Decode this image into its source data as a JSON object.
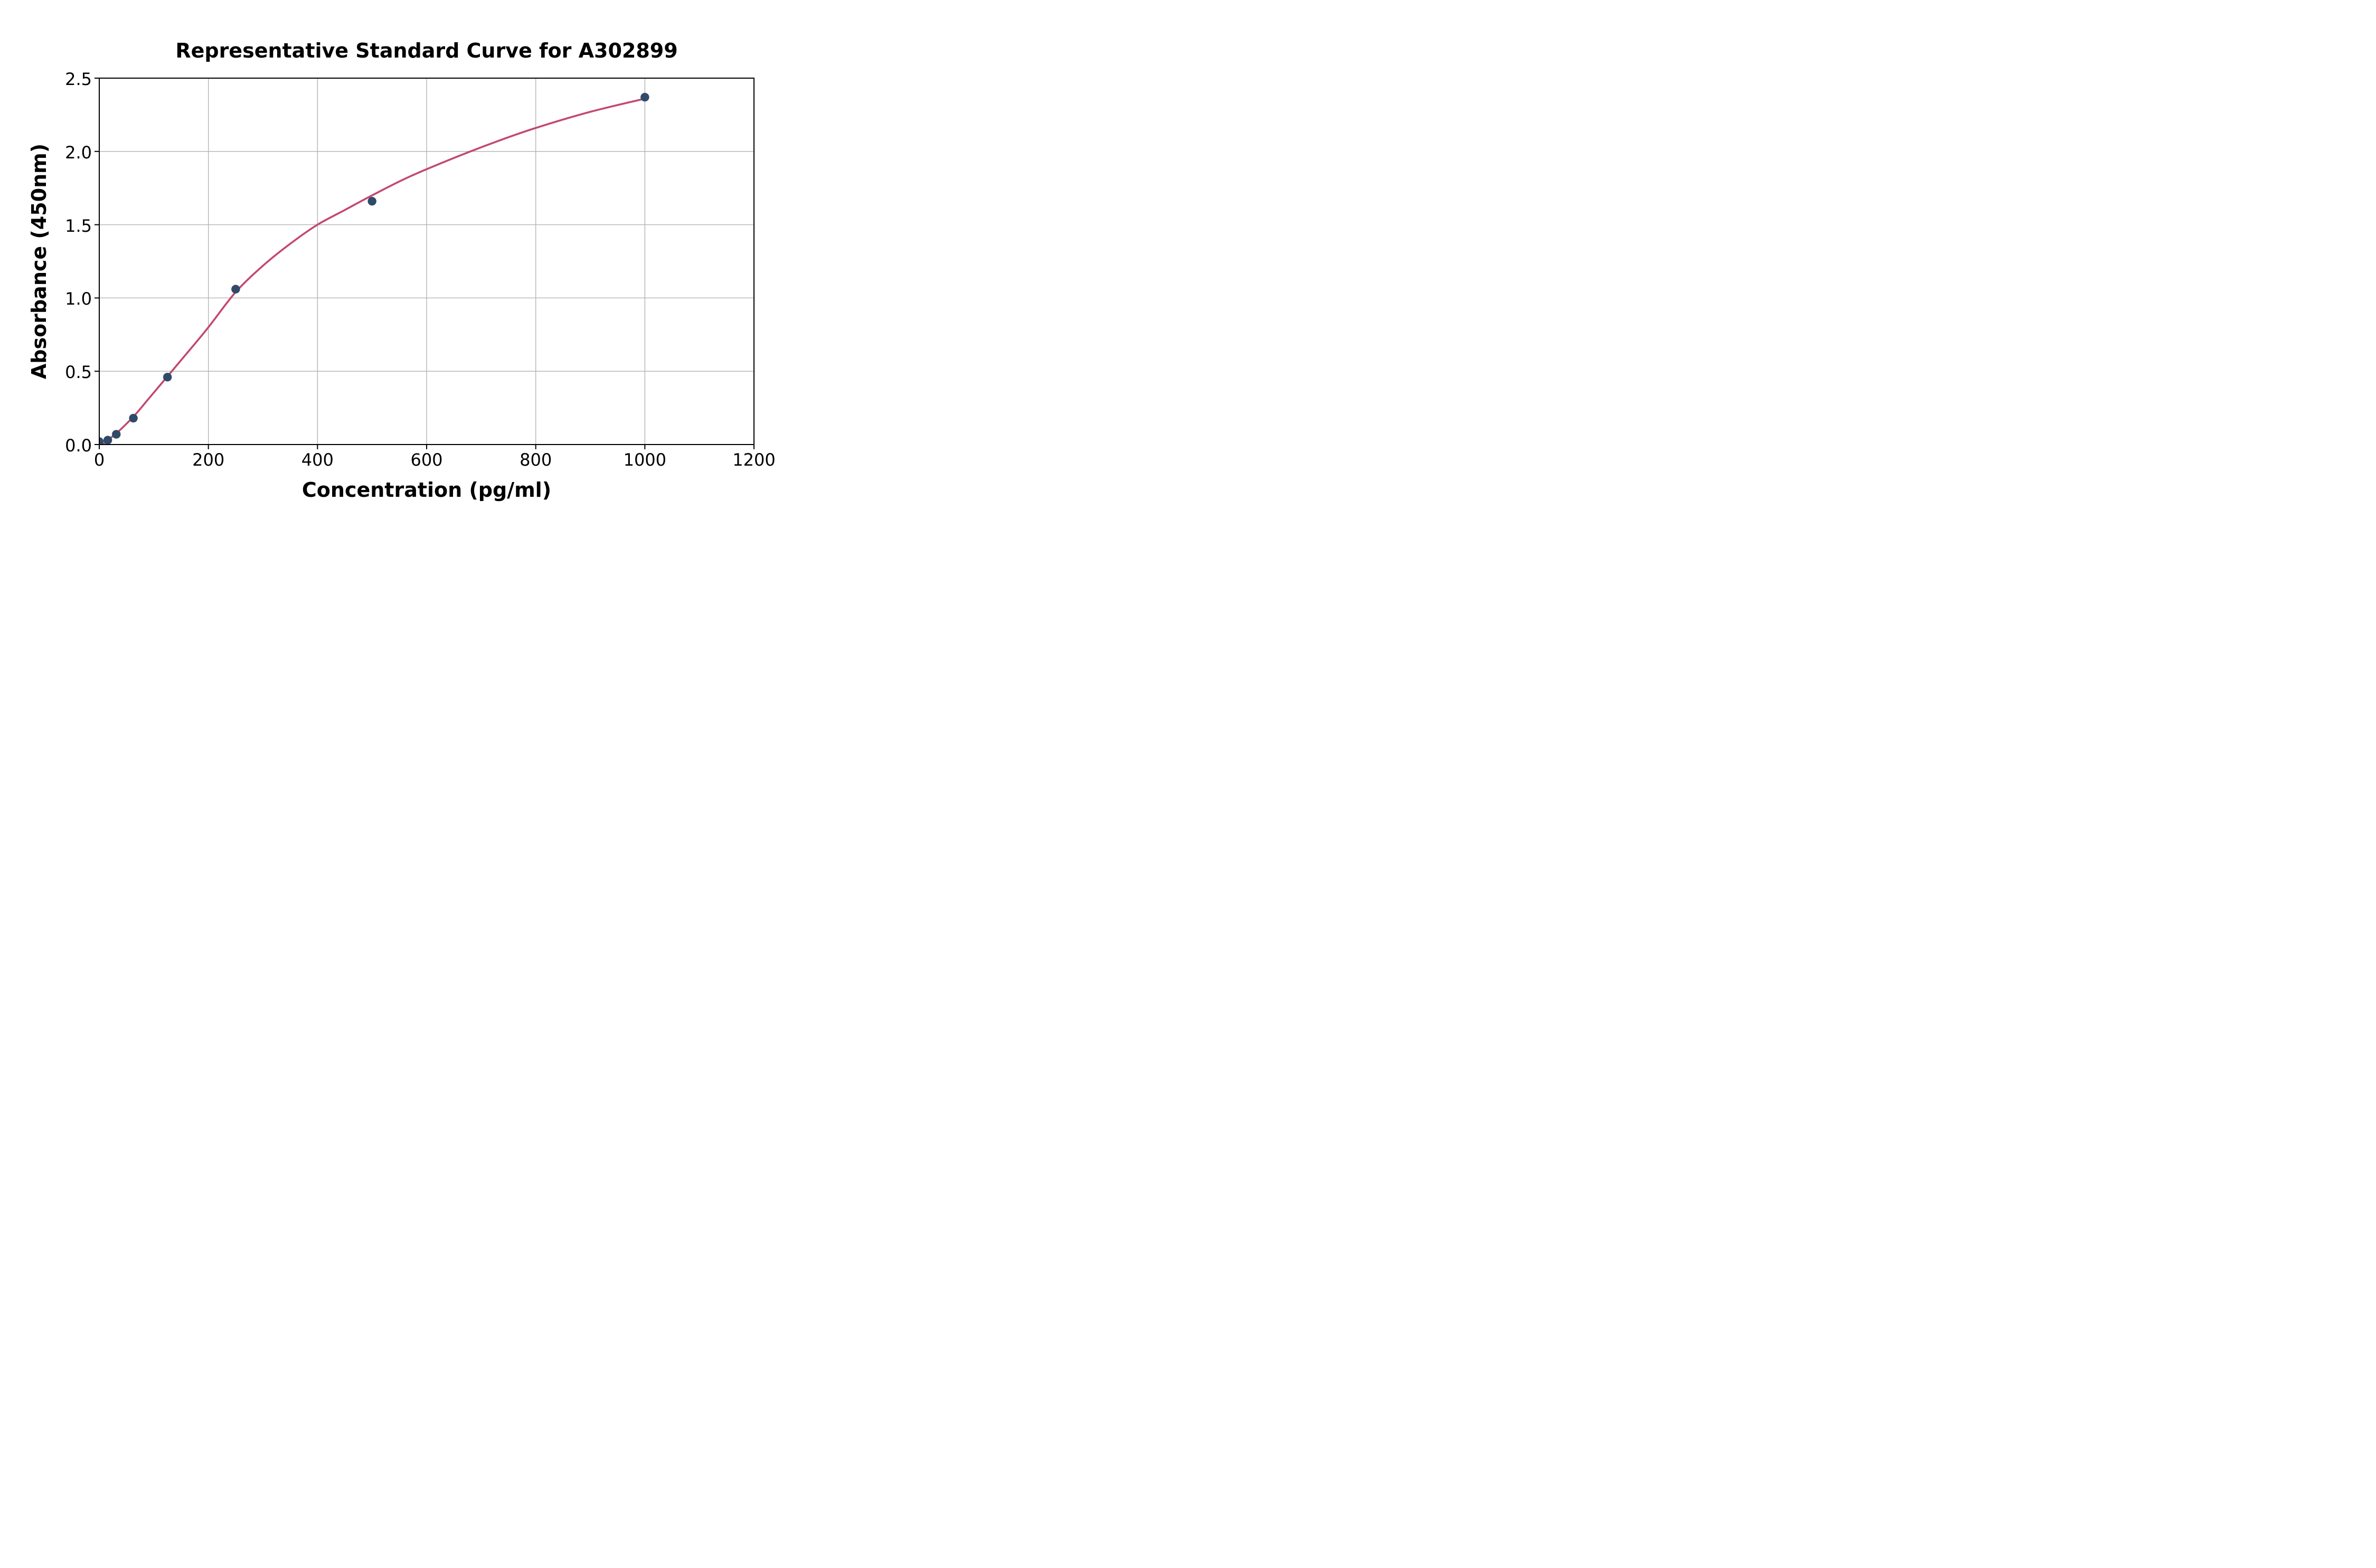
{
  "chart_data": {
    "type": "scatter",
    "title": "Representative Standard Curve for A302899",
    "xlabel": "Concentration (pg/ml)",
    "ylabel": "Absorbance (450nm)",
    "xlim": [
      0,
      1200
    ],
    "ylim": [
      0,
      2.5
    ],
    "x_ticks": [
      0,
      200,
      400,
      600,
      800,
      1000,
      1200
    ],
    "x_tick_labels": [
      "0",
      "200",
      "400",
      "600",
      "800",
      "1000",
      "1200"
    ],
    "y_ticks": [
      0,
      0.5,
      1.0,
      1.5,
      2.0,
      2.5
    ],
    "y_tick_labels": [
      "0.0",
      "0.5",
      "1.0",
      "1.5",
      "2.0",
      "2.5"
    ],
    "grid": "major-on",
    "legend": "none",
    "series": [
      {
        "name": "standard-points",
        "marker": "circle",
        "color": "#2f4b68",
        "points": [
          {
            "x": 0,
            "y": 0.02
          },
          {
            "x": 15.6,
            "y": 0.03
          },
          {
            "x": 31.2,
            "y": 0.07
          },
          {
            "x": 62.5,
            "y": 0.18
          },
          {
            "x": 125,
            "y": 0.46
          },
          {
            "x": 250,
            "y": 1.06
          },
          {
            "x": 500,
            "y": 1.66
          },
          {
            "x": 1000,
            "y": 2.37
          }
        ]
      },
      {
        "name": "fitted-curve",
        "marker": "none",
        "color": "#c3496f",
        "line_samples": [
          [
            7,
            0
          ],
          [
            15,
            0.03
          ],
          [
            31,
            0.075
          ],
          [
            62.5,
            0.19
          ],
          [
            90,
            0.31
          ],
          [
            125,
            0.465
          ],
          [
            160,
            0.62
          ],
          [
            200,
            0.8
          ],
          [
            250,
            1.04
          ],
          [
            300,
            1.22
          ],
          [
            350,
            1.37
          ],
          [
            400,
            1.5
          ],
          [
            450,
            1.6
          ],
          [
            500,
            1.7
          ],
          [
            570,
            1.83
          ],
          [
            660,
            1.97
          ],
          [
            730,
            2.07
          ],
          [
            800,
            2.16
          ],
          [
            900,
            2.27
          ],
          [
            1000,
            2.36
          ]
        ]
      }
    ],
    "colors": {
      "grid": "#b0b0b0",
      "axis": "#000000",
      "text": "#000000",
      "background": "#ffffff",
      "point": "#2f4b68",
      "curve": "#c3496f"
    }
  }
}
